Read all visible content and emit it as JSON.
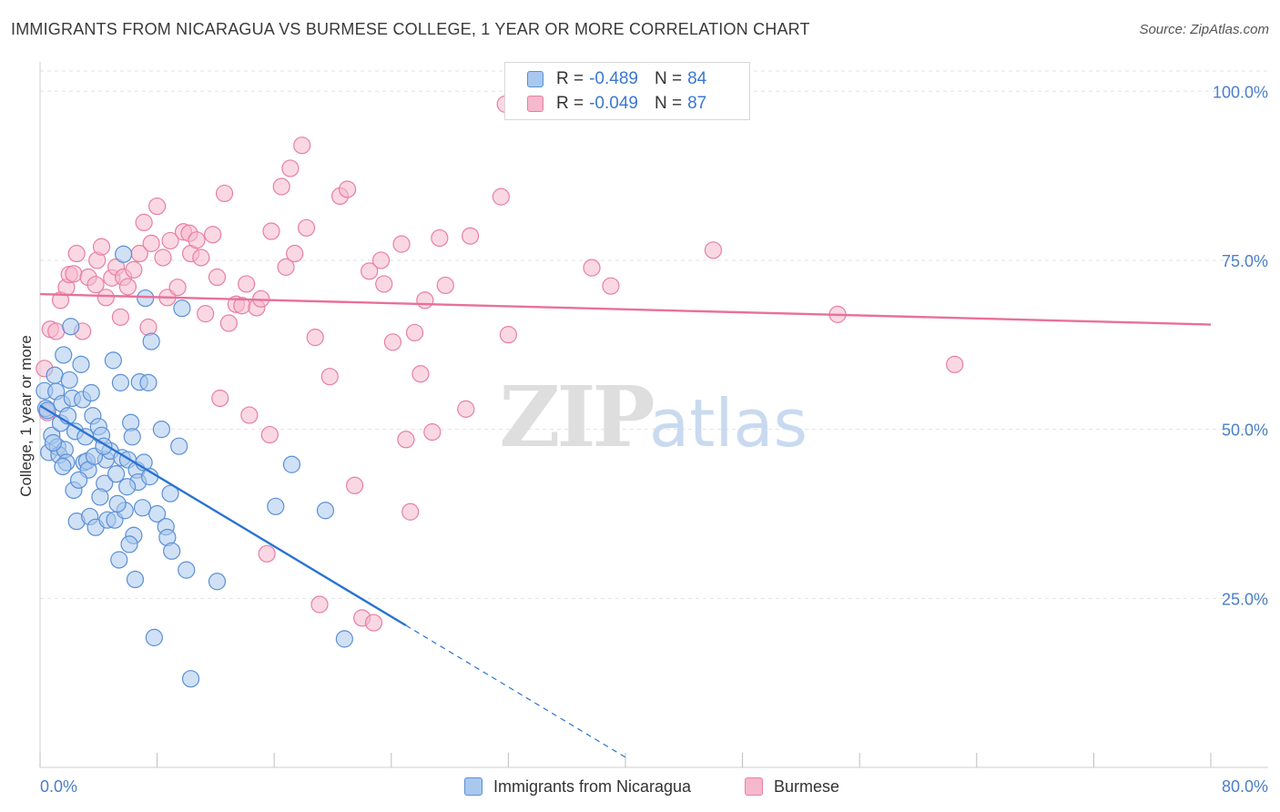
{
  "title": "IMMIGRANTS FROM NICARAGUA VS BURMESE COLLEGE, 1 YEAR OR MORE CORRELATION CHART",
  "source": "Source: ZipAtlas.com",
  "watermark": {
    "zip": "ZIP",
    "atlas": "atlas"
  },
  "colors": {
    "blue_fill": "#a9c8ee",
    "blue_stroke": "#5b8fd6",
    "blue_line": "#2a73d1",
    "pink_fill": "#f5b8cc",
    "pink_stroke": "#e87fa3",
    "pink_line": "#e8709a",
    "grid": "#e2e2e2",
    "tick_text": "#4a7fc9"
  },
  "legend": {
    "rows": [
      {
        "r_label": "R =",
        "r_value": "-0.489",
        "n_label": "N =",
        "n_value": "84",
        "series": "blue"
      },
      {
        "r_label": "R =",
        "r_value": "-0.049",
        "n_label": "N =",
        "n_value": "87",
        "series": "pink"
      }
    ]
  },
  "bottom_legend": {
    "series1": "Immigrants from Nicaragua",
    "series2": "Burmese"
  },
  "chart_data": {
    "type": "scatter",
    "title": "IMMIGRANTS FROM NICARAGUA VS BURMESE COLLEGE, 1 YEAR OR MORE CORRELATION CHART",
    "xlabel": "",
    "ylabel": "College, 1 year or more",
    "xlim": [
      0,
      80
    ],
    "ylim": [
      0,
      103
    ],
    "x_tick_labels": [
      "0.0%",
      "80.0%"
    ],
    "y_ticks": [
      25,
      50,
      75,
      100
    ],
    "y_tick_labels": [
      "25.0%",
      "50.0%",
      "75.0%",
      "100.0%"
    ],
    "grid": true,
    "series": [
      {
        "name": "Immigrants from Nicaragua",
        "color": "blue",
        "R": -0.489,
        "N": 84,
        "trend": {
          "x0": 0,
          "y0": 53.5,
          "x1": 25,
          "y1": 21,
          "x_dash_end": 40,
          "y_dash_end": 1.5
        },
        "points": [
          [
            0.3,
            55.7
          ],
          [
            0.4,
            53.1
          ],
          [
            0.5,
            52.8
          ],
          [
            0.6,
            46.6
          ],
          [
            0.8,
            49.1
          ],
          [
            1.0,
            58.0
          ],
          [
            1.1,
            55.6
          ],
          [
            1.2,
            47.4
          ],
          [
            1.3,
            46.2
          ],
          [
            1.4,
            50.9
          ],
          [
            1.5,
            53.8
          ],
          [
            1.6,
            61.0
          ],
          [
            1.7,
            47.0
          ],
          [
            1.8,
            45.1
          ],
          [
            2.0,
            57.3
          ],
          [
            2.1,
            65.2
          ],
          [
            2.2,
            54.6
          ],
          [
            2.4,
            49.7
          ],
          [
            2.5,
            36.4
          ],
          [
            2.8,
            59.6
          ],
          [
            2.9,
            54.4
          ],
          [
            3.0,
            45.1
          ],
          [
            3.1,
            48.9
          ],
          [
            3.2,
            45.3
          ],
          [
            3.4,
            37.1
          ],
          [
            3.5,
            55.4
          ],
          [
            3.6,
            52.0
          ],
          [
            3.8,
            35.5
          ],
          [
            4.0,
            50.4
          ],
          [
            4.2,
            49.1
          ],
          [
            4.4,
            42.0
          ],
          [
            4.5,
            45.5
          ],
          [
            4.6,
            36.6
          ],
          [
            4.8,
            46.8
          ],
          [
            5.0,
            60.2
          ],
          [
            5.1,
            36.6
          ],
          [
            5.2,
            43.4
          ],
          [
            5.4,
            30.7
          ],
          [
            5.5,
            56.9
          ],
          [
            5.6,
            45.8
          ],
          [
            5.7,
            75.9
          ],
          [
            5.8,
            38.0
          ],
          [
            6.0,
            45.5
          ],
          [
            6.2,
            51.0
          ],
          [
            6.3,
            48.9
          ],
          [
            6.4,
            34.3
          ],
          [
            6.5,
            27.8
          ],
          [
            6.6,
            44.0
          ],
          [
            6.7,
            42.2
          ],
          [
            6.8,
            57.0
          ],
          [
            7.0,
            38.4
          ],
          [
            7.1,
            45.1
          ],
          [
            7.2,
            69.4
          ],
          [
            7.4,
            56.9
          ],
          [
            7.6,
            63.0
          ],
          [
            7.8,
            19.2
          ],
          [
            8.0,
            37.5
          ],
          [
            8.3,
            50.0
          ],
          [
            8.6,
            35.6
          ],
          [
            8.7,
            34.0
          ],
          [
            9.0,
            32.0
          ],
          [
            9.5,
            47.5
          ],
          [
            9.7,
            67.9
          ],
          [
            10.0,
            29.2
          ],
          [
            10.3,
            13.1
          ],
          [
            12.1,
            27.5
          ],
          [
            16.1,
            38.6
          ],
          [
            17.2,
            44.8
          ],
          [
            19.5,
            38.0
          ],
          [
            20.8,
            19.0
          ],
          [
            1.9,
            52.0
          ],
          [
            2.3,
            41.0
          ],
          [
            3.3,
            44.0
          ],
          [
            4.1,
            40.0
          ],
          [
            5.3,
            39.0
          ],
          [
            6.1,
            33.0
          ],
          [
            0.9,
            48.0
          ],
          [
            1.55,
            44.5
          ],
          [
            2.65,
            42.5
          ],
          [
            3.7,
            46.0
          ],
          [
            4.35,
            47.5
          ],
          [
            5.95,
            41.5
          ],
          [
            7.5,
            43.0
          ],
          [
            8.9,
            40.5
          ]
        ]
      },
      {
        "name": "Burmese",
        "color": "pink",
        "R": -0.049,
        "N": 87,
        "trend": {
          "x0": 0,
          "y0": 70,
          "x1": 80,
          "y1": 65.5
        },
        "points": [
          [
            0.3,
            59.0
          ],
          [
            0.5,
            52.5
          ],
          [
            0.7,
            64.8
          ],
          [
            1.1,
            64.5
          ],
          [
            1.4,
            69.1
          ],
          [
            1.8,
            71.0
          ],
          [
            2.0,
            72.9
          ],
          [
            2.3,
            73.0
          ],
          [
            2.5,
            76.0
          ],
          [
            2.9,
            64.5
          ],
          [
            3.3,
            72.5
          ],
          [
            3.8,
            71.4
          ],
          [
            3.9,
            75.0
          ],
          [
            4.2,
            77.0
          ],
          [
            4.5,
            69.5
          ],
          [
            4.9,
            72.4
          ],
          [
            5.2,
            74.0
          ],
          [
            5.5,
            66.6
          ],
          [
            5.7,
            72.5
          ],
          [
            6.0,
            71.1
          ],
          [
            6.4,
            73.6
          ],
          [
            6.8,
            76.0
          ],
          [
            7.1,
            80.6
          ],
          [
            7.4,
            65.1
          ],
          [
            7.6,
            77.5
          ],
          [
            8.0,
            83.0
          ],
          [
            8.4,
            75.4
          ],
          [
            8.7,
            69.5
          ],
          [
            8.9,
            77.9
          ],
          [
            9.4,
            71.0
          ],
          [
            9.8,
            79.2
          ],
          [
            10.2,
            79.0
          ],
          [
            10.3,
            76.0
          ],
          [
            10.7,
            78.0
          ],
          [
            11.0,
            75.4
          ],
          [
            11.3,
            67.1
          ],
          [
            11.8,
            78.8
          ],
          [
            12.1,
            72.5
          ],
          [
            12.3,
            54.6
          ],
          [
            12.6,
            84.9
          ],
          [
            12.9,
            65.7
          ],
          [
            13.4,
            68.5
          ],
          [
            13.8,
            68.3
          ],
          [
            14.1,
            71.5
          ],
          [
            14.3,
            52.1
          ],
          [
            14.8,
            68.0
          ],
          [
            15.1,
            69.3
          ],
          [
            15.5,
            31.6
          ],
          [
            15.7,
            49.2
          ],
          [
            15.8,
            79.3
          ],
          [
            16.5,
            85.9
          ],
          [
            16.8,
            74.0
          ],
          [
            17.1,
            88.6
          ],
          [
            17.4,
            76.0
          ],
          [
            17.9,
            92.0
          ],
          [
            18.2,
            79.8
          ],
          [
            18.8,
            63.6
          ],
          [
            19.1,
            24.1
          ],
          [
            19.8,
            57.8
          ],
          [
            20.5,
            84.5
          ],
          [
            21.0,
            85.5
          ],
          [
            21.5,
            41.7
          ],
          [
            22.0,
            22.1
          ],
          [
            22.5,
            73.4
          ],
          [
            22.8,
            21.4
          ],
          [
            23.3,
            75.0
          ],
          [
            23.5,
            71.5
          ],
          [
            24.1,
            62.9
          ],
          [
            24.7,
            77.4
          ],
          [
            25.0,
            48.5
          ],
          [
            25.3,
            37.8
          ],
          [
            25.6,
            64.3
          ],
          [
            26.0,
            58.2
          ],
          [
            26.3,
            69.1
          ],
          [
            26.8,
            49.6
          ],
          [
            27.3,
            78.3
          ],
          [
            27.7,
            71.3
          ],
          [
            29.1,
            53.0
          ],
          [
            29.4,
            78.6
          ],
          [
            31.5,
            84.4
          ],
          [
            31.8,
            98.1
          ],
          [
            37.7,
            73.9
          ],
          [
            39.0,
            71.2
          ],
          [
            46.0,
            76.5
          ],
          [
            54.5,
            67.0
          ],
          [
            62.5,
            59.6
          ],
          [
            32.0,
            64.0
          ]
        ]
      }
    ]
  }
}
